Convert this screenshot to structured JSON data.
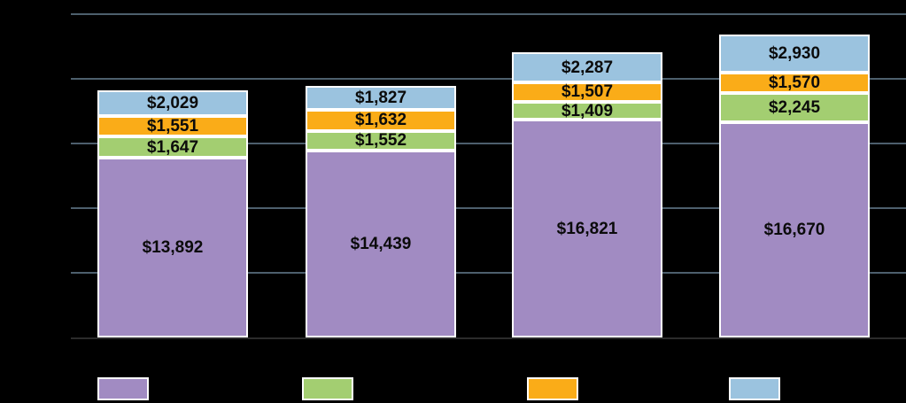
{
  "chart_data": {
    "type": "bar",
    "subtype": "stacked",
    "title": "",
    "categories": [
      "",
      "",
      "",
      ""
    ],
    "series": [
      {
        "name": "purple-series",
        "color": "#A18BC2",
        "values": [
          13892,
          14439,
          16821,
          16670
        ],
        "labels": [
          "$13,892",
          "$14,439",
          "$16,821",
          "$16,670"
        ]
      },
      {
        "name": "green-series",
        "color": "#A3CE71",
        "values": [
          1647,
          1552,
          1409,
          2245
        ],
        "labels": [
          "$1,647",
          "$1,552",
          "$1,409",
          "$2,245"
        ]
      },
      {
        "name": "orange-series",
        "color": "#FAAC18",
        "values": [
          1551,
          1632,
          1507,
          1570
        ],
        "labels": [
          "$1,551",
          "$1,632",
          "$1,507",
          "$1,570"
        ]
      },
      {
        "name": "blue-series",
        "color": "#9BC3DF",
        "values": [
          2029,
          1827,
          2287,
          2930
        ],
        "labels": [
          "$2,029",
          "$1,827",
          "$2,287",
          "$2,930"
        ]
      }
    ],
    "stack_order_bottom_to_top": [
      "purple-series",
      "green-series",
      "orange-series",
      "blue-series"
    ],
    "ylim": [
      0,
      25000
    ],
    "gridline_step": 5000,
    "grid": true,
    "legend_position": "bottom",
    "legend_swatches": [
      "#A18BC2",
      "#A3CE71",
      "#FAAC18",
      "#9BC3DF"
    ],
    "axis_tick_labels_visible": false,
    "legend_text_visible": false
  },
  "colors": {
    "background": "#000000",
    "gridline": "#4D5F6D",
    "axis_line": "#2B2B2B",
    "segment_border": "#FFFFFF",
    "label_text": "#0B0B0B"
  }
}
